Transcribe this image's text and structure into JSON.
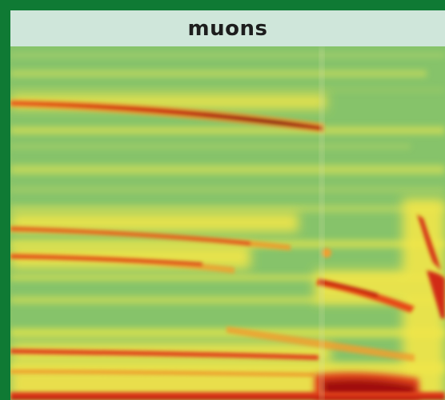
{
  "panel": {
    "title": "muons"
  },
  "colors": {
    "frame": "#0f7a34",
    "title_background": "#cfe6da",
    "low": "#86c36a",
    "mid": "#f2e64a",
    "high": "#e53a12",
    "peak": "#8a0a0a"
  }
}
